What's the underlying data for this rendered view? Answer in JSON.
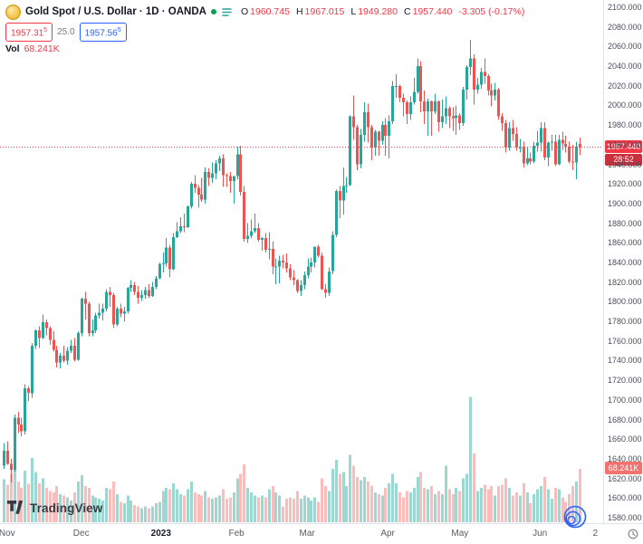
{
  "header": {
    "symbol_title": "Gold Spot / U.S. Dollar · 1D · OANDA",
    "ohlc": {
      "o_label": "O",
      "o": "1960.745",
      "h_label": "H",
      "h": "1967.015",
      "l_label": "L",
      "l": "1949.280",
      "c_label": "C",
      "c": "1957.440",
      "change": "-3.305 (-0.17%)"
    },
    "sell_price_main": "1957.31",
    "sell_price_sup": "5",
    "spread": "25.0",
    "buy_price_main": "1957.56",
    "buy_price_sup": "5",
    "vol_label": "Vol",
    "vol_value": "68.241K"
  },
  "price_scale": {
    "last_price_label": "1957.440",
    "countdown": "28:52",
    "volume_axis_label": "68.241K"
  },
  "watermark": {
    "brand": "TradingView"
  },
  "chart_data": {
    "type": "candlestick+volume",
    "title": "Gold Spot / U.S. Dollar",
    "symbol": "XAUUSD",
    "timeframe": "1D",
    "exchange": "OANDA",
    "last_close": 1957.44,
    "change": -3.305,
    "change_pct": -0.17,
    "price_axis": {
      "min": 1580,
      "max": 2100,
      "tick_step": 20
    },
    "price_ticks": [
      "2100.000",
      "2080.000",
      "2060.000",
      "2040.000",
      "2020.000",
      "2000.000",
      "1980.000",
      "1960.000",
      "1940.000",
      "1920.000",
      "1900.000",
      "1880.000",
      "1860.000",
      "1840.000",
      "1820.000",
      "1800.000",
      "1780.000",
      "1760.000",
      "1740.000",
      "1720.000",
      "1700.000",
      "1680.000",
      "1660.000",
      "1640.000",
      "1620.000",
      "1600.000",
      "1580.000"
    ],
    "time_ticks": [
      {
        "label": "Nov",
        "i": 1
      },
      {
        "label": "Dec",
        "i": 22
      },
      {
        "label": "2023",
        "i": 44,
        "strong": true
      },
      {
        "label": "Feb",
        "i": 66
      },
      {
        "label": "Mar",
        "i": 86
      },
      {
        "label": "Apr",
        "i": 109
      },
      {
        "label": "May",
        "i": 129
      },
      {
        "label": "Jun",
        "i": 152
      },
      {
        "label": "2",
        "i": 169
      }
    ],
    "colors": {
      "up": "#26a69a",
      "down": "#ef5350",
      "volume_up": "rgba(38,166,154,0.45)",
      "volume_down": "rgba(239,83,80,0.38)",
      "last_price": "#f23645",
      "buy": "#2962ff",
      "accent_blue": "#2962ff"
    },
    "volume_unit": "K",
    "candles_format": [
      "open",
      "high",
      "low",
      "close",
      "volume_K"
    ],
    "candles": [
      [
        1633,
        1656,
        1630,
        1648,
        55
      ],
      [
        1648,
        1658,
        1634,
        1635,
        48
      ],
      [
        1635,
        1640,
        1616,
        1629,
        62
      ],
      [
        1629,
        1685,
        1627,
        1682,
        78
      ],
      [
        1682,
        1688,
        1666,
        1675,
        52
      ],
      [
        1675,
        1682,
        1663,
        1668,
        44
      ],
      [
        1668,
        1716,
        1665,
        1712,
        66
      ],
      [
        1712,
        1714,
        1699,
        1707,
        49
      ],
      [
        1707,
        1758,
        1702,
        1755,
        82
      ],
      [
        1755,
        1772,
        1752,
        1771,
        64
      ],
      [
        1771,
        1775,
        1753,
        1763,
        50
      ],
      [
        1763,
        1787,
        1762,
        1779,
        56
      ],
      [
        1779,
        1782,
        1766,
        1773,
        44
      ],
      [
        1773,
        1775,
        1756,
        1761,
        40
      ],
      [
        1761,
        1770,
        1749,
        1751,
        38
      ],
      [
        1751,
        1755,
        1733,
        1738,
        46
      ],
      [
        1738,
        1748,
        1732,
        1745,
        36
      ],
      [
        1745,
        1755,
        1738,
        1740,
        34
      ],
      [
        1740,
        1754,
        1736,
        1750,
        32
      ],
      [
        1750,
        1761,
        1748,
        1755,
        28
      ],
      [
        1755,
        1763,
        1739,
        1741,
        38
      ],
      [
        1741,
        1770,
        1740,
        1768,
        52
      ],
      [
        1768,
        1804,
        1765,
        1803,
        60
      ],
      [
        1803,
        1810,
        1782,
        1798,
        46
      ],
      [
        1798,
        1800,
        1765,
        1768,
        44
      ],
      [
        1768,
        1782,
        1765,
        1771,
        34
      ],
      [
        1771,
        1789,
        1768,
        1786,
        32
      ],
      [
        1786,
        1798,
        1783,
        1789,
        30
      ],
      [
        1789,
        1798,
        1781,
        1793,
        28
      ],
      [
        1793,
        1813,
        1790,
        1810,
        44
      ],
      [
        1810,
        1815,
        1795,
        1807,
        42
      ],
      [
        1807,
        1809,
        1773,
        1777,
        52
      ],
      [
        1777,
        1795,
        1775,
        1793,
        36
      ],
      [
        1793,
        1798,
        1784,
        1788,
        26
      ],
      [
        1788,
        1795,
        1780,
        1790,
        24
      ],
      [
        1790,
        1815,
        1788,
        1814,
        34
      ],
      [
        1814,
        1822,
        1810,
        1817,
        28
      ],
      [
        1817,
        1820,
        1807,
        1810,
        22
      ],
      [
        1810,
        1816,
        1798,
        1804,
        20
      ],
      [
        1804,
        1812,
        1801,
        1807,
        18
      ],
      [
        1807,
        1815,
        1803,
        1812,
        20
      ],
      [
        1812,
        1818,
        1804,
        1806,
        18
      ],
      [
        1806,
        1820,
        1805,
        1815,
        20
      ],
      [
        1815,
        1826,
        1813,
        1824,
        24
      ],
      [
        1824,
        1840,
        1823,
        1838,
        26
      ],
      [
        1838,
        1850,
        1830,
        1839,
        40
      ],
      [
        1839,
        1865,
        1836,
        1855,
        44
      ],
      [
        1855,
        1858,
        1825,
        1833,
        42
      ],
      [
        1833,
        1870,
        1832,
        1866,
        50
      ],
      [
        1866,
        1881,
        1865,
        1872,
        42
      ],
      [
        1872,
        1886,
        1870,
        1877,
        36
      ],
      [
        1877,
        1890,
        1871,
        1876,
        34
      ],
      [
        1876,
        1898,
        1875,
        1897,
        42
      ],
      [
        1897,
        1922,
        1895,
        1920,
        52
      ],
      [
        1920,
        1929,
        1911,
        1916,
        38
      ],
      [
        1916,
        1919,
        1896,
        1909,
        36
      ],
      [
        1909,
        1926,
        1902,
        1904,
        34
      ],
      [
        1904,
        1937,
        1900,
        1932,
        40
      ],
      [
        1932,
        1936,
        1918,
        1926,
        32
      ],
      [
        1926,
        1942,
        1921,
        1931,
        30
      ],
      [
        1931,
        1944,
        1925,
        1941,
        32
      ],
      [
        1941,
        1949,
        1933,
        1946,
        34
      ],
      [
        1946,
        1950,
        1917,
        1929,
        42
      ],
      [
        1929,
        1931,
        1917,
        1928,
        30
      ],
      [
        1928,
        1932,
        1911,
        1923,
        32
      ],
      [
        1923,
        1928,
        1900,
        1928,
        38
      ],
      [
        1928,
        1958,
        1925,
        1950,
        56
      ],
      [
        1950,
        1959,
        1908,
        1912,
        62
      ],
      [
        1912,
        1918,
        1861,
        1864,
        74
      ],
      [
        1864,
        1880,
        1860,
        1867,
        44
      ],
      [
        1867,
        1884,
        1865,
        1872,
        38
      ],
      [
        1872,
        1890,
        1870,
        1875,
        34
      ],
      [
        1875,
        1880,
        1861,
        1863,
        32
      ],
      [
        1863,
        1866,
        1852,
        1865,
        34
      ],
      [
        1865,
        1870,
        1850,
        1853,
        32
      ],
      [
        1853,
        1871,
        1843,
        1854,
        42
      ],
      [
        1854,
        1861,
        1828,
        1836,
        46
      ],
      [
        1836,
        1844,
        1818,
        1836,
        38
      ],
      [
        1836,
        1847,
        1819,
        1842,
        34
      ],
      [
        1842,
        1848,
        1834,
        1840,
        20
      ],
      [
        1840,
        1849,
        1830,
        1834,
        30
      ],
      [
        1834,
        1838,
        1822,
        1825,
        32
      ],
      [
        1825,
        1832,
        1817,
        1822,
        30
      ],
      [
        1822,
        1823,
        1809,
        1811,
        40
      ],
      [
        1811,
        1822,
        1806,
        1817,
        30
      ],
      [
        1817,
        1831,
        1813,
        1827,
        34
      ],
      [
        1827,
        1844,
        1824,
        1836,
        32
      ],
      [
        1836,
        1845,
        1830,
        1840,
        28
      ],
      [
        1840,
        1856,
        1835,
        1856,
        32
      ],
      [
        1856,
        1858,
        1845,
        1847,
        26
      ],
      [
        1847,
        1850,
        1812,
        1813,
        56
      ],
      [
        1813,
        1818,
        1804,
        1809,
        46
      ],
      [
        1809,
        1835,
        1806,
        1831,
        40
      ],
      [
        1831,
        1872,
        1828,
        1868,
        68
      ],
      [
        1868,
        1914,
        1866,
        1913,
        80
      ],
      [
        1913,
        1918,
        1885,
        1903,
        62
      ],
      [
        1903,
        1937,
        1889,
        1918,
        64
      ],
      [
        1918,
        1927,
        1911,
        1919,
        46
      ],
      [
        1919,
        1990,
        1918,
        1989,
        86
      ],
      [
        1989,
        2010,
        1965,
        1978,
        72
      ],
      [
        1978,
        1980,
        1934,
        1940,
        58
      ],
      [
        1940,
        1976,
        1936,
        1970,
        54
      ],
      [
        1970,
        2003,
        1963,
        1993,
        58
      ],
      [
        1993,
        2002,
        1962,
        1978,
        52
      ],
      [
        1978,
        1980,
        1944,
        1957,
        46
      ],
      [
        1957,
        1975,
        1949,
        1973,
        38
      ],
      [
        1973,
        1974,
        1949,
        1964,
        36
      ],
      [
        1964,
        1984,
        1960,
        1980,
        34
      ],
      [
        1980,
        1987,
        1949,
        1969,
        44
      ],
      [
        1969,
        1990,
        1946,
        1984,
        50
      ],
      [
        1984,
        2025,
        1981,
        2020,
        62
      ],
      [
        2020,
        2032,
        2008,
        2020,
        50
      ],
      [
        2020,
        2021,
        2003,
        2008,
        38
      ],
      [
        2008,
        2012,
        1989,
        2003,
        32
      ],
      [
        2003,
        2005,
        1981,
        1991,
        40
      ],
      [
        1991,
        2009,
        1985,
        2003,
        38
      ],
      [
        2003,
        2028,
        2001,
        2014,
        44
      ],
      [
        2014,
        2048,
        2012,
        2040,
        58
      ],
      [
        2040,
        2045,
        1993,
        2004,
        64
      ],
      [
        2004,
        2015,
        1981,
        1994,
        44
      ],
      [
        1994,
        2007,
        1969,
        2004,
        42
      ],
      [
        2004,
        2005,
        1969,
        1994,
        46
      ],
      [
        1994,
        2012,
        1991,
        2004,
        36
      ],
      [
        2004,
        2005,
        1973,
        1983,
        40
      ],
      [
        1983,
        2006,
        1977,
        1989,
        36
      ],
      [
        1989,
        2009,
        1981,
        1997,
        72
      ],
      [
        1997,
        1999,
        1977,
        1989,
        42
      ],
      [
        1989,
        1998,
        1974,
        1987,
        36
      ],
      [
        1987,
        2000,
        1970,
        1990,
        44
      ],
      [
        1990,
        1992,
        1975,
        1982,
        40
      ],
      [
        1982,
        2019,
        1979,
        2016,
        56
      ],
      [
        2016,
        2041,
        2006,
        2039,
        62
      ],
      [
        2039,
        2067,
        2031,
        2048,
        160
      ],
      [
        2048,
        2052,
        2001,
        2016,
        88
      ],
      [
        2016,
        2028,
        2012,
        2021,
        40
      ],
      [
        2021,
        2038,
        2017,
        2034,
        44
      ],
      [
        2034,
        2048,
        2022,
        2030,
        48
      ],
      [
        2030,
        2032,
        2010,
        2015,
        42
      ],
      [
        2015,
        2022,
        1999,
        2010,
        46
      ],
      [
        2010,
        2023,
        2005,
        2016,
        34
      ],
      [
        2016,
        2018,
        1985,
        1989,
        46
      ],
      [
        1989,
        1992,
        1974,
        1982,
        48
      ],
      [
        1982,
        1985,
        1952,
        1957,
        56
      ],
      [
        1957,
        1983,
        1954,
        1977,
        44
      ],
      [
        1977,
        1985,
        1964,
        1971,
        34
      ],
      [
        1971,
        1978,
        1954,
        1957,
        38
      ],
      [
        1957,
        1966,
        1952,
        1957,
        34
      ],
      [
        1957,
        1963,
        1937,
        1941,
        50
      ],
      [
        1941,
        1958,
        1939,
        1946,
        38
      ],
      [
        1946,
        1952,
        1940,
        1943,
        24
      ],
      [
        1943,
        1963,
        1941,
        1959,
        36
      ],
      [
        1959,
        1974,
        1953,
        1962,
        42
      ],
      [
        1962,
        1983,
        1953,
        1977,
        46
      ],
      [
        1977,
        1983,
        1944,
        1947,
        58
      ],
      [
        1947,
        1963,
        1938,
        1962,
        42
      ],
      [
        1962,
        1970,
        1954,
        1963,
        30
      ],
      [
        1963,
        1970,
        1938,
        1940,
        44
      ],
      [
        1940,
        1970,
        1939,
        1965,
        42
      ],
      [
        1965,
        1973,
        1955,
        1961,
        32
      ],
      [
        1961,
        1969,
        1952,
        1958,
        26
      ],
      [
        1958,
        1963,
        1941,
        1943,
        36
      ],
      [
        1943,
        1960,
        1934,
        1942,
        46
      ],
      [
        1942,
        1963,
        1925,
        1958,
        52
      ],
      [
        1960.745,
        1967.015,
        1949.28,
        1957.44,
        68.241
      ]
    ]
  }
}
